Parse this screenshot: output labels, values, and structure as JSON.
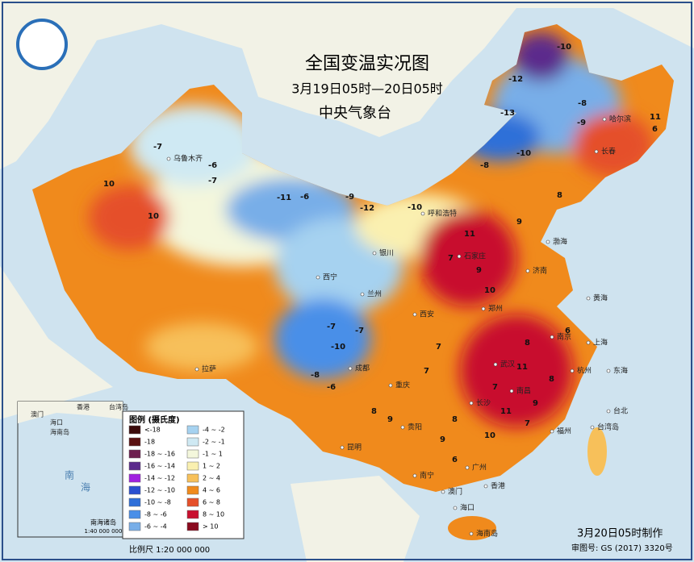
{
  "header": {
    "title": "全国变温实况图",
    "subtitle": "3月19日05时—20日05时",
    "agency": "中央气象台"
  },
  "legend": {
    "title": "图例 (摄氏度)",
    "items": [
      {
        "label": "<-18",
        "color": "#3b0a0a"
      },
      {
        "label": "-18",
        "color": "#5a1010"
      },
      {
        "label": "-18 ~ -16",
        "color": "#6d1f4f"
      },
      {
        "label": "-16 ~ -14",
        "color": "#5b2a8c"
      },
      {
        "label": "-14 ~ -12",
        "color": "#a020e0"
      },
      {
        "label": "-12 ~ -10",
        "color": "#2a4fd0"
      },
      {
        "label": "-10 ~ -8",
        "color": "#2f6fd8"
      },
      {
        "label": "-8 ~ -6",
        "color": "#4a8fe8"
      },
      {
        "label": "-6 ~ -4",
        "color": "#78aee8"
      },
      {
        "label": "-4 ~ -2",
        "color": "#a6d2f0"
      },
      {
        "label": "-2 ~ -1",
        "color": "#cfe9f3"
      },
      {
        "label": "-1 ~ 1",
        "color": "#f4f7dc"
      },
      {
        "label": "1 ~ 2",
        "color": "#faf0b0"
      },
      {
        "label": "2 ~ 4",
        "color": "#f7c05a"
      },
      {
        "label": "4 ~ 6",
        "color": "#f08a1c"
      },
      {
        "label": "6 ~ 8",
        "color": "#e5502a"
      },
      {
        "label": "8 ~ 10",
        "color": "#c8102e"
      },
      {
        "label": "> 10",
        "color": "#8a0a1e"
      }
    ]
  },
  "scale": "比例尺   1:20 000 000",
  "footer": {
    "made": "3月20日05时制作",
    "review": "审图号: GS (2017) 3320号"
  },
  "inset": {
    "title": "南海诸岛",
    "scale": "1:40 000 000",
    "labels": [
      "香港",
      "台湾岛",
      "澳门",
      "海口",
      "海南岛",
      "南",
      "海"
    ]
  },
  "places": [
    "乌鲁木齐",
    "哈尔滨",
    "长春",
    "呼和浩特",
    "银川",
    "石家庄",
    "济南",
    "西宁",
    "兰州",
    "郑州",
    "西安",
    "南京",
    "上海",
    "武汉",
    "杭州",
    "拉萨",
    "成都",
    "重庆",
    "福州",
    "贵阳",
    "长沙",
    "南昌",
    "昆明",
    "广州",
    "南宁",
    "台北",
    "澳门",
    "香港",
    "海口",
    "海南岛",
    "东海",
    "黄海",
    "渤海",
    "台湾岛"
  ],
  "map_values": [
    -7,
    -6,
    -7,
    10,
    10,
    -11,
    -6,
    -9,
    -12,
    -10,
    -13,
    -12,
    -10,
    -9,
    -8,
    -10,
    -8,
    11,
    6,
    8,
    9,
    11,
    7,
    9,
    10,
    8,
    11,
    7,
    9,
    6,
    -7,
    -10,
    -7,
    -8,
    -6,
    7,
    8,
    9,
    10,
    11,
    8,
    7,
    6,
    9,
    8,
    7
  ]
}
